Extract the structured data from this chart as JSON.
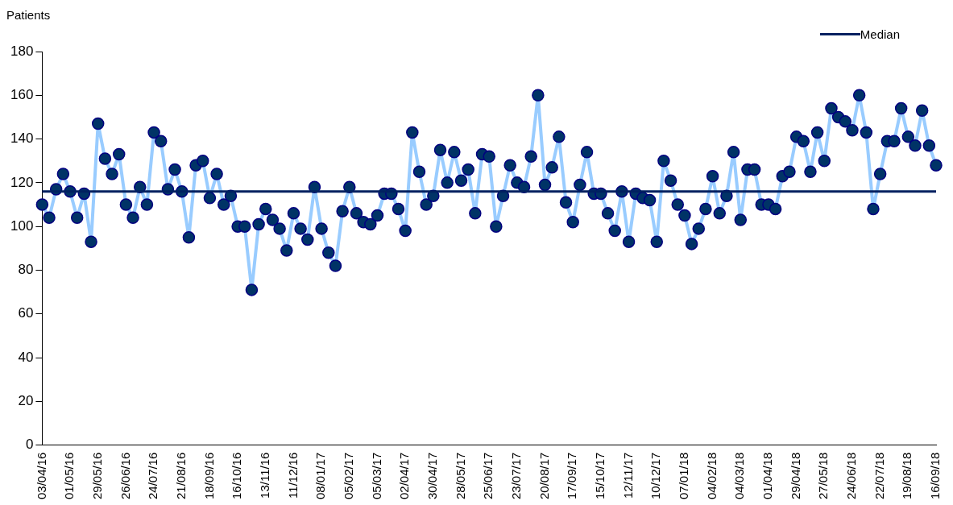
{
  "chart_data": {
    "type": "line",
    "ylabel": "Patients",
    "categories": [
      "03/04/16",
      null,
      null,
      null,
      "01/05/16",
      null,
      null,
      null,
      "29/05/16",
      null,
      null,
      null,
      "26/06/16",
      null,
      null,
      null,
      "24/07/16",
      null,
      null,
      null,
      "21/08/16",
      null,
      null,
      null,
      "18/09/16",
      null,
      null,
      null,
      "16/10/16",
      null,
      null,
      null,
      "13/11/16",
      null,
      null,
      null,
      "11/12/16",
      null,
      null,
      null,
      "08/01/17",
      null,
      null,
      null,
      "05/02/17",
      null,
      null,
      null,
      "05/03/17",
      null,
      null,
      null,
      "02/04/17",
      null,
      null,
      null,
      "30/04/17",
      null,
      null,
      null,
      "28/05/17",
      null,
      null,
      null,
      "25/06/17",
      null,
      null,
      null,
      "23/07/17",
      null,
      null,
      null,
      "20/08/17",
      null,
      null,
      null,
      "17/09/17",
      null,
      null,
      null,
      "15/10/17",
      null,
      null,
      null,
      "12/11/17",
      null,
      null,
      null,
      "10/12/17",
      null,
      null,
      null,
      "07/01/18",
      null,
      null,
      null,
      "04/02/18",
      null,
      null,
      null,
      "04/03/18",
      null,
      null,
      null,
      "01/04/18",
      null,
      null,
      null,
      "29/04/18",
      null,
      null,
      null,
      "27/05/18",
      null,
      null,
      null,
      "24/06/18",
      null,
      null,
      null,
      "22/07/18",
      null,
      null,
      null,
      "19/08/18",
      null,
      null,
      null,
      "16/09/18"
    ],
    "series": [
      {
        "color": "#99ccff",
        "values": [
          110,
          104,
          117,
          124,
          116,
          104,
          115,
          93,
          147,
          131,
          124,
          133,
          110,
          104,
          118,
          110,
          143,
          139,
          117,
          126,
          116,
          95,
          128,
          130,
          113,
          124,
          110,
          114,
          100,
          100,
          71,
          101,
          108,
          103,
          99,
          89,
          106,
          99,
          94,
          118,
          99,
          88,
          82,
          107,
          118,
          106,
          102,
          101,
          105,
          115,
          115,
          108,
          98,
          143,
          125,
          110,
          114,
          135,
          120,
          134,
          121,
          126,
          106,
          133,
          132,
          100,
          114,
          128,
          120,
          118,
          132,
          160,
          119,
          127,
          141,
          111,
          102,
          119,
          134,
          115,
          115,
          106,
          98,
          116,
          93,
          115,
          113,
          112,
          93,
          130,
          121,
          110,
          105,
          92,
          99,
          108,
          123,
          106,
          114,
          134,
          103,
          126,
          126,
          110,
          110,
          108,
          123,
          125,
          141,
          139,
          125,
          143,
          130,
          154,
          150,
          148,
          144,
          160,
          143,
          108,
          124,
          139,
          139,
          154,
          141,
          137,
          153,
          137,
          128
        ]
      }
    ],
    "ylim": [
      0,
      180
    ],
    "yticks": [
      0,
      20,
      40,
      60,
      80,
      100,
      120,
      140,
      160,
      180
    ],
    "ref_lines": [
      {
        "axis": "y",
        "value": 116,
        "label": "Median",
        "color": "#002060"
      }
    ],
    "grid": false,
    "legend": "top right",
    "marker": "circle",
    "line_style": "solid"
  }
}
